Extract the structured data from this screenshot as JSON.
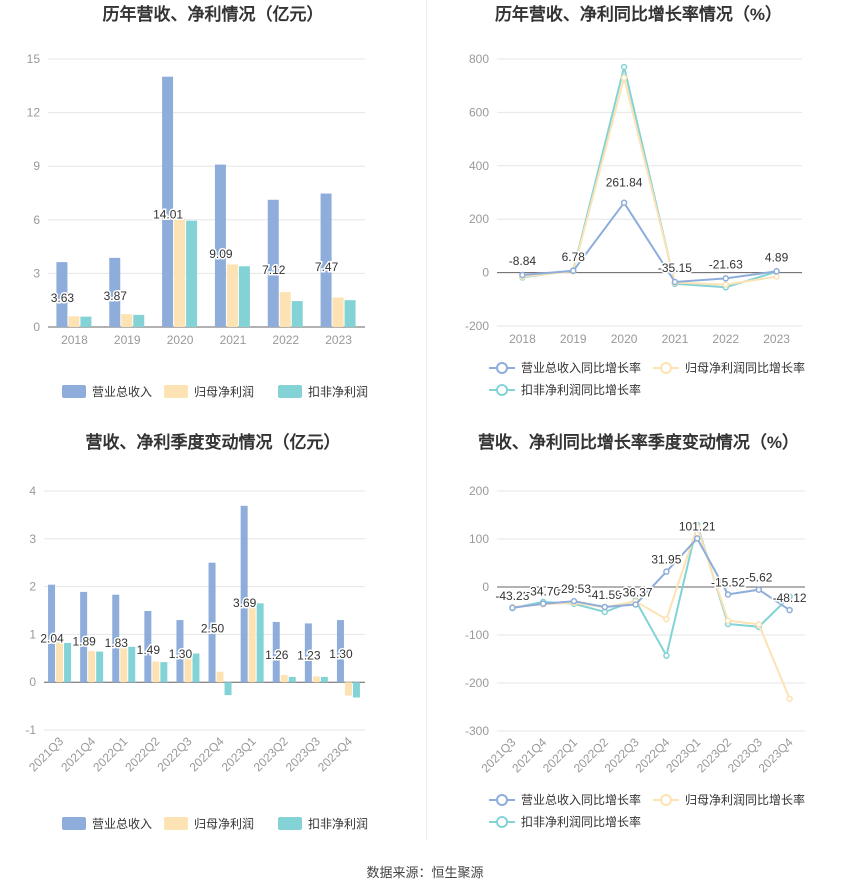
{
  "colors": {
    "revenue": "#8eadda",
    "net_profit": "#fde2b3",
    "deducted_profit": "#83d3d6",
    "gridline": "#e6e6e6",
    "axis": "#999999",
    "text": "#333333"
  },
  "source_text": "数据来源：恒生聚源",
  "chart_data": [
    {
      "type": "bar",
      "title": "历年营收、净利情况（亿元）",
      "categories": [
        "2018",
        "2019",
        "2020",
        "2021",
        "2022",
        "2023"
      ],
      "series": [
        {
          "name": "营业总收入",
          "values": [
            3.63,
            3.87,
            14.01,
            9.09,
            7.12,
            7.47
          ]
        },
        {
          "name": "归母净利润",
          "values": [
            0.6,
            0.72,
            6.1,
            3.5,
            1.95,
            1.65
          ]
        },
        {
          "name": "扣非净利润",
          "values": [
            0.58,
            0.68,
            5.95,
            3.4,
            1.45,
            1.5
          ]
        }
      ],
      "data_labels": [
        "3.63",
        "3.87",
        "14.01",
        "9.09",
        "7.12",
        "7.47"
      ],
      "yticks": [
        "0",
        "3",
        "6",
        "9",
        "12",
        "15"
      ],
      "ylim": [
        0,
        15
      ],
      "grid": true,
      "legend": "bottom"
    },
    {
      "type": "line",
      "title": "历年营收、净利同比增长率情况（%）",
      "categories": [
        "2018",
        "2019",
        "2020",
        "2021",
        "2022",
        "2023"
      ],
      "series": [
        {
          "name": "营业总收入同比增长率",
          "values": [
            -8.84,
            6.78,
            261.84,
            -35.15,
            -21.63,
            4.89
          ]
        },
        {
          "name": "归母净利润同比增长率",
          "values": [
            -15,
            5,
            730,
            -38,
            -45,
            -15
          ]
        },
        {
          "name": "扣非净利润同比增长率",
          "values": [
            -18,
            8,
            770,
            -42,
            -55,
            3
          ]
        }
      ],
      "data_labels": [
        "-8.84",
        "6.78",
        "261.84",
        "-35.15",
        "-21.63",
        "4.89"
      ],
      "yticks": [
        "-200",
        "0",
        "200",
        "400",
        "600",
        "800"
      ],
      "ylim": [
        -200,
        800
      ],
      "grid": true,
      "legend": "bottom"
    },
    {
      "type": "bar",
      "title": "营收、净利季度变动情况（亿元）",
      "categories": [
        "2021Q3",
        "2021Q4",
        "2022Q1",
        "2022Q2",
        "2022Q3",
        "2022Q4",
        "2023Q1",
        "2023Q2",
        "2023Q3",
        "2023Q4"
      ],
      "series": [
        {
          "name": "营业总收入",
          "values": [
            2.04,
            1.89,
            1.83,
            1.49,
            1.3,
            2.5,
            3.69,
            1.26,
            1.23,
            1.3
          ]
        },
        {
          "name": "归母净利润",
          "values": [
            0.85,
            0.65,
            0.75,
            0.43,
            0.58,
            0.22,
            1.7,
            0.15,
            0.12,
            -0.28
          ]
        },
        {
          "name": "扣非净利润",
          "values": [
            0.82,
            0.64,
            0.74,
            0.42,
            0.6,
            -0.27,
            1.65,
            0.11,
            0.11,
            -0.32
          ]
        }
      ],
      "data_labels": [
        "2.04",
        "1.89",
        "1.83",
        "1.49",
        "1.30",
        "2.50",
        "3.69",
        "1.26",
        "1.23",
        "1.30"
      ],
      "yticks": [
        "-1",
        "0",
        "1",
        "2",
        "3",
        "4"
      ],
      "ylim": [
        -1,
        4
      ],
      "grid": true,
      "legend": "bottom"
    },
    {
      "type": "line",
      "title": "营收、净利同比增长率季度变动情况（%）",
      "categories": [
        "2021Q3",
        "2021Q4",
        "2022Q1",
        "2022Q2",
        "2022Q3",
        "2022Q4",
        "2023Q1",
        "2023Q2",
        "2023Q3",
        "2023Q4"
      ],
      "series": [
        {
          "name": "营业总收入同比增长率",
          "values": [
            -43.23,
            -34.7,
            -29.53,
            -41.59,
            -36.37,
            31.95,
            101.21,
            -15.52,
            -5.62,
            -48.12
          ]
        },
        {
          "name": "归母净利润同比增长率",
          "values": [
            -42,
            -36,
            -33,
            -42,
            -30,
            -67,
            125,
            -70,
            -78,
            -233
          ]
        },
        {
          "name": "扣非净利润同比增长率",
          "values": [
            -44,
            -31,
            -35,
            -52,
            -28,
            -143,
            130,
            -77,
            -83,
            -20
          ]
        }
      ],
      "data_labels": [
        "-43.23",
        "-34.70",
        "-29.53",
        "-41.59",
        "-36.37",
        "31.95",
        "101.21",
        "-15.52",
        "-5.62",
        "-48.12"
      ],
      "yticks": [
        "-300",
        "-200",
        "-100",
        "0",
        "100",
        "200"
      ],
      "ylim": [
        -300,
        200
      ],
      "grid": true,
      "legend": "bottom"
    }
  ]
}
